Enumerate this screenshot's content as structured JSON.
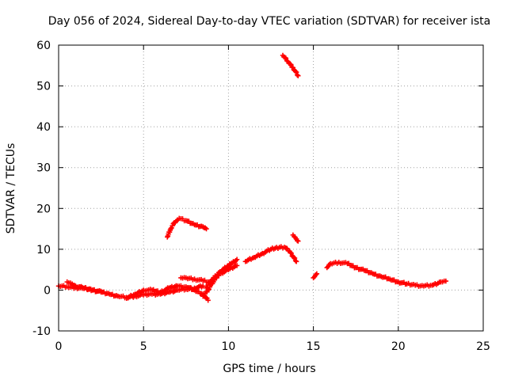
{
  "chart_data": {
    "type": "scatter",
    "title": "Day 056 of 2024, Sidereal Day-to-day VTEC variation (SDTVAR) for receiver ista",
    "xlabel": "GPS time / hours",
    "ylabel": "SDTVAR / TECUs",
    "xlim": [
      0,
      25
    ],
    "ylim": [
      -10,
      60
    ],
    "xticks": [
      "0",
      "5",
      "10",
      "15",
      "20",
      "25"
    ],
    "yticks": [
      "-10",
      "0",
      "10",
      "20",
      "30",
      "40",
      "50",
      "60"
    ],
    "grid": true,
    "marker_color": "#ff0000",
    "series": [
      {
        "name": "SDTVAR",
        "tracks": [
          {
            "x": [
              0.0,
              0.5,
              1.0,
              1.5,
              2.0,
              2.5,
              3.0,
              3.5,
              4.0,
              4.5,
              5.0,
              5.5,
              6.0,
              6.5,
              7.0,
              7.5,
              8.0,
              8.5
            ],
            "y": [
              1.0,
              0.8,
              0.6,
              0.4,
              0.0,
              -0.5,
              -1.0,
              -1.5,
              -1.8,
              -1.5,
              -1.2,
              -1.0,
              -1.0,
              -0.5,
              0.0,
              0.2,
              0.5,
              1.0
            ]
          },
          {
            "x": [
              0.5,
              0.8,
              1.0,
              1.5,
              2.0,
              2.5
            ],
            "y": [
              2.0,
              1.5,
              1.0,
              0.5,
              0.0,
              -0.3
            ]
          },
          {
            "x": [
              4.0,
              4.5,
              5.0,
              5.5,
              6.0,
              6.5,
              7.0,
              7.5,
              8.0,
              8.5,
              8.8
            ],
            "y": [
              -2.0,
              -1.0,
              0.0,
              0.0,
              -0.5,
              0.5,
              1.0,
              0.8,
              0.0,
              -1.0,
              -2.5
            ]
          },
          {
            "x": [
              7.2,
              7.5,
              8.0,
              8.5,
              8.8
            ],
            "y": [
              3.0,
              3.0,
              2.7,
              2.3,
              2.0
            ]
          },
          {
            "x": [
              6.4,
              6.6,
              6.8,
              7.0,
              7.2,
              7.5,
              8.0,
              8.5,
              8.7
            ],
            "y": [
              13.0,
              15.0,
              16.5,
              17.2,
              17.5,
              17.0,
              16.0,
              15.5,
              15.0
            ]
          },
          {
            "x": [
              8.5,
              8.8,
              9.0,
              9.3,
              9.5,
              10.0,
              10.5
            ],
            "y": [
              -1.5,
              0.0,
              1.5,
              3.0,
              4.0,
              5.0,
              6.0
            ]
          },
          {
            "x": [
              8.7,
              9.0,
              9.5,
              10.0,
              10.5
            ],
            "y": [
              0.5,
              2.5,
              4.5,
              6.0,
              7.5
            ]
          },
          {
            "x": [
              11.0,
              11.5,
              12.0,
              12.5,
              13.0,
              13.3,
              13.6,
              14.0
            ],
            "y": [
              7.0,
              8.0,
              9.0,
              10.0,
              10.5,
              10.5,
              9.5,
              7.0
            ]
          },
          {
            "x": [
              13.8,
              14.0,
              14.1
            ],
            "y": [
              13.5,
              12.5,
              12.0
            ]
          },
          {
            "x": [
              13.2,
              13.5,
              13.8,
              14.1
            ],
            "y": [
              57.5,
              56.0,
              54.5,
              52.5
            ]
          },
          {
            "x": [
              15.0,
              15.2
            ],
            "y": [
              3.0,
              4.0
            ]
          },
          {
            "x": [
              15.8,
              16.0,
              16.5,
              17.0,
              17.5,
              18.0,
              18.5,
              19.0,
              19.5,
              20.0,
              20.5,
              21.0,
              21.5,
              22.0,
              22.5,
              22.8
            ],
            "y": [
              5.5,
              6.5,
              6.8,
              6.5,
              5.5,
              4.8,
              4.0,
              3.3,
              2.7,
              2.0,
              1.5,
              1.2,
              1.0,
              1.2,
              2.0,
              2.2
            ]
          }
        ]
      }
    ]
  }
}
